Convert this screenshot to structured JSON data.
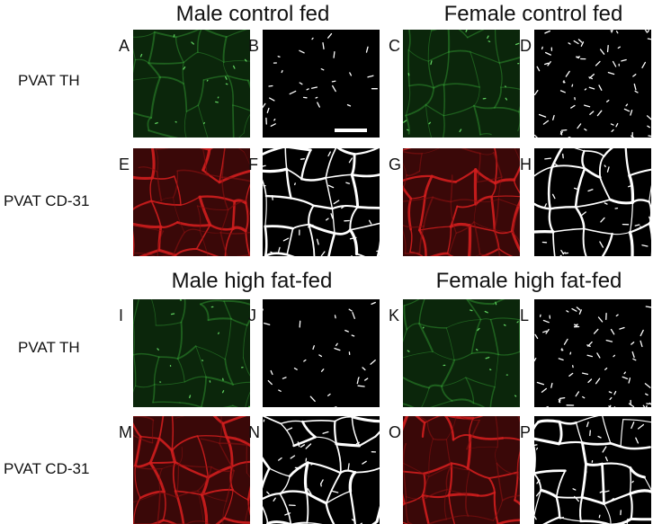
{
  "headers": {
    "male_control": "Male control fed",
    "female_control": "Female control fed",
    "male_hf": "Male high fat-fed",
    "female_hf": "Female high fat-fed"
  },
  "row_labels": {
    "row1": "PVAT TH",
    "row2": "PVAT  CD-31",
    "row3": "PVAT TH",
    "row4": "PVAT  CD-31"
  },
  "panels": [
    {
      "letter": "A",
      "stain": "green"
    },
    {
      "letter": "B",
      "stain": "binary-sparse"
    },
    {
      "letter": "C",
      "stain": "green"
    },
    {
      "letter": "D",
      "stain": "binary-sparse"
    },
    {
      "letter": "E",
      "stain": "red"
    },
    {
      "letter": "F",
      "stain": "binary-dense"
    },
    {
      "letter": "G",
      "stain": "red"
    },
    {
      "letter": "H",
      "stain": "binary-dense"
    },
    {
      "letter": "I",
      "stain": "green"
    },
    {
      "letter": "J",
      "stain": "binary-sparse"
    },
    {
      "letter": "K",
      "stain": "green"
    },
    {
      "letter": "L",
      "stain": "binary-sparse"
    },
    {
      "letter": "M",
      "stain": "red"
    },
    {
      "letter": "N",
      "stain": "binary-dense"
    },
    {
      "letter": "O",
      "stain": "red"
    },
    {
      "letter": "P",
      "stain": "binary-dense"
    }
  ],
  "colors": {
    "green_stain": "#2f8f2f",
    "red_stain": "#d21e1e",
    "binary": "#ffffff",
    "background": "#000000"
  }
}
